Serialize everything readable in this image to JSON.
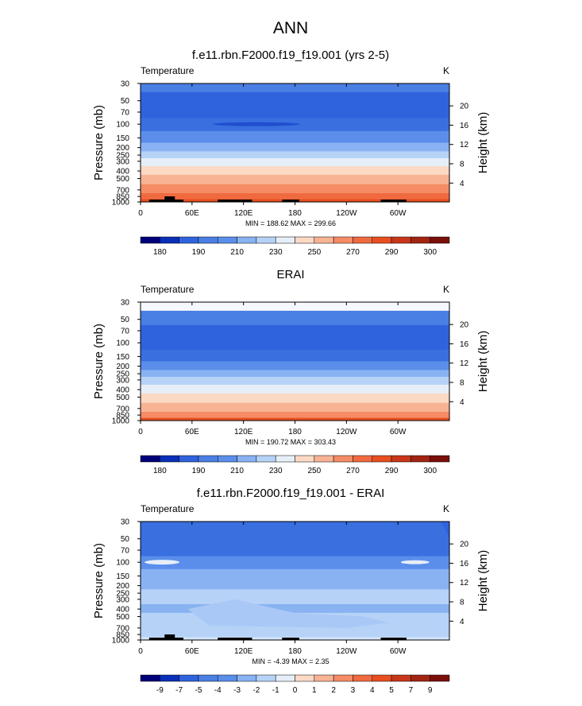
{
  "figure": {
    "title": "ANN"
  },
  "chart_data": [
    {
      "type": "heatmap",
      "title": "f.e11.rbn.F2000.f19_f19.001 (yrs 2-5)",
      "variable_label": "Temperature",
      "units_label": "K",
      "ylabel": "Pressure (mb)",
      "ylabel_right": "Height (km)",
      "pressure_ticks": [
        "30",
        "50",
        "70",
        "100",
        "150",
        "200",
        "250",
        "300",
        "400",
        "500",
        "700",
        "850",
        "1000"
      ],
      "height_ticks": [
        "4",
        "8",
        "12",
        "16",
        "20"
      ],
      "longitude_ticks": [
        "0",
        "60E",
        "120E",
        "180",
        "120W",
        "60W"
      ],
      "stats_text": "MIN = 188.62  MAX = 299.66",
      "colorbar_labels": [
        "180",
        "190",
        "210",
        "230",
        "250",
        "270",
        "290",
        "300"
      ],
      "ylim": [
        1000,
        30
      ],
      "xlim": [
        0,
        360
      ],
      "band_colors": [
        "#4a7fe3",
        "#2f63de",
        "#2f63de",
        "#3a6fe0",
        "#5b8eea",
        "#88b2f2",
        "#b6d2f7",
        "#e6eef8",
        "#fbd9c4",
        "#f7b394",
        "#f58c66",
        "#f06a40",
        "#e84f20"
      ]
    },
    {
      "type": "heatmap",
      "title": "ERAI",
      "variable_label": "Temperature",
      "units_label": "K",
      "ylabel": "Pressure (mb)",
      "ylabel_right": "Height (km)",
      "pressure_ticks": [
        "30",
        "50",
        "70",
        "100",
        "150",
        "200",
        "250",
        "300",
        "400",
        "500",
        "700",
        "850",
        "1000"
      ],
      "height_ticks": [
        "4",
        "8",
        "12",
        "16",
        "20"
      ],
      "longitude_ticks": [
        "0",
        "60E",
        "120E",
        "180",
        "120W",
        "60W"
      ],
      "stats_text": "MIN = 190.72  MAX = 303.43",
      "colorbar_labels": [
        "180",
        "190",
        "210",
        "230",
        "250",
        "270",
        "290",
        "300"
      ],
      "ylim": [
        1000,
        30
      ],
      "xlim": [
        0,
        360
      ],
      "band_colors": [
        "#f5f9ff",
        "#4a7fe3",
        "#2f63de",
        "#2f63de",
        "#3a6fe0",
        "#5b8eea",
        "#88b2f2",
        "#b6d2f7",
        "#e6eef8",
        "#fbd9c4",
        "#f7b394",
        "#f58c66",
        "#e84f20"
      ]
    },
    {
      "type": "heatmap",
      "title": "f.e11.rbn.F2000.f19_f19.001 - ERAI",
      "variable_label": "Temperature",
      "units_label": "K",
      "ylabel": "Pressure (mb)",
      "ylabel_right": "Height (km)",
      "pressure_ticks": [
        "30",
        "50",
        "70",
        "100",
        "150",
        "200",
        "250",
        "300",
        "400",
        "500",
        "700",
        "850",
        "1000"
      ],
      "height_ticks": [
        "4",
        "8",
        "12",
        "16",
        "20"
      ],
      "longitude_ticks": [
        "0",
        "60E",
        "120E",
        "180",
        "120W",
        "60W"
      ],
      "stats_text": "MIN = -4.39  MAX =  2.35",
      "colorbar_labels": [
        "-9",
        "-7",
        "-5",
        "-4",
        "-3",
        "-2",
        "-1",
        "0",
        "1",
        "2",
        "3",
        "4",
        "5",
        "7",
        "9"
      ],
      "ylim": [
        1000,
        30
      ],
      "xlim": [
        0,
        360
      ],
      "band_colors": [
        "#2f63de",
        "#2f63de",
        "#3a6fe0",
        "#5b8eea",
        "#88b2f2",
        "#88b2f2",
        "#b6d2f7",
        "#b6d2f7",
        "#88b2f2",
        "#b6d2f7",
        "#b6d2f7",
        "#b6d2f7",
        "#d6e6fa"
      ]
    }
  ],
  "colormap": {
    "temperature": [
      "#00007a",
      "#0a2fb8",
      "#2f63de",
      "#4a7fe3",
      "#5b8eea",
      "#88b2f2",
      "#b6d2f7",
      "#e6eef8",
      "#fbd9c4",
      "#f7b394",
      "#f58c66",
      "#f06a40",
      "#e84f20",
      "#c8361a",
      "#a22412",
      "#7a0f0a"
    ],
    "difference": [
      "#00007a",
      "#0a2fb8",
      "#2f63de",
      "#4a7fe3",
      "#5b8eea",
      "#88b2f2",
      "#b6d2f7",
      "#e6eef8",
      "#fbd9c4",
      "#f7b394",
      "#f58c66",
      "#f06a40",
      "#e84f20",
      "#c8361a",
      "#a22412",
      "#7a0f0a"
    ]
  }
}
